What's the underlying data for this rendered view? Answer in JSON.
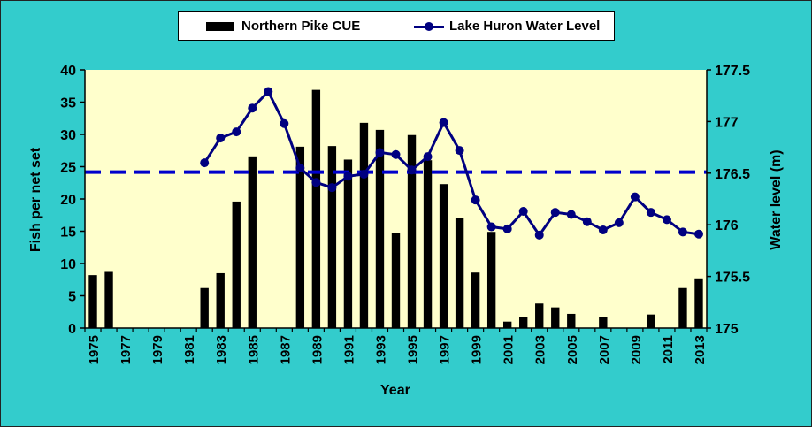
{
  "chart_data": {
    "type": "bar",
    "x": [
      1975,
      1976,
      1977,
      1978,
      1979,
      1980,
      1981,
      1982,
      1983,
      1984,
      1985,
      1986,
      1987,
      1988,
      1989,
      1990,
      1991,
      1992,
      1993,
      1994,
      1995,
      1996,
      1997,
      1998,
      1999,
      2000,
      2001,
      2002,
      2003,
      2004,
      2005,
      2006,
      2007,
      2008,
      2009,
      2010,
      2011,
      2012,
      2013
    ],
    "x_tick_labels": [
      "1975",
      "1977",
      "1979",
      "1981",
      "1983",
      "1985",
      "1987",
      "1989",
      "1991",
      "1993",
      "1995",
      "1997",
      "1999",
      "2001",
      "2003",
      "2005",
      "2007",
      "2009",
      "2011",
      "2013"
    ],
    "series": [
      {
        "name": "Northern Pike CUE",
        "type": "bar",
        "axis": "left",
        "color": "#000000",
        "values": [
          8.2,
          8.7,
          null,
          null,
          null,
          null,
          null,
          6.2,
          8.5,
          19.6,
          26.6,
          null,
          null,
          28.1,
          36.9,
          28.2,
          26.1,
          31.8,
          30.7,
          14.7,
          29.9,
          26.0,
          22.3,
          17.0,
          8.6,
          14.9,
          1.0,
          1.7,
          3.8,
          3.2,
          2.2,
          null,
          1.7,
          null,
          null,
          2.1,
          null,
          6.2,
          7.7
        ]
      },
      {
        "name": "Lake Huron Water Level",
        "type": "line",
        "axis": "right",
        "color": "#000080",
        "values": [
          null,
          null,
          null,
          null,
          null,
          null,
          null,
          176.6,
          176.84,
          176.9,
          177.13,
          177.29,
          176.98,
          176.55,
          176.41,
          176.36,
          176.47,
          176.49,
          176.7,
          176.68,
          176.53,
          176.66,
          176.99,
          176.72,
          176.24,
          175.98,
          175.96,
          176.13,
          175.9,
          176.12,
          176.1,
          176.03,
          175.95,
          176.02,
          176.27,
          176.12,
          176.05,
          175.93,
          175.91
        ]
      }
    ],
    "reference_line": {
      "axis": "right",
      "value": 176.51,
      "style": "dashed",
      "color": "#0000cc"
    },
    "xlabel": "Year",
    "ylabel": "Fish per net set",
    "y2label": "Water level (m)",
    "ylim": [
      0,
      40
    ],
    "y2lim": [
      175,
      177.5
    ],
    "yticks": [
      "0",
      "5",
      "10",
      "15",
      "20",
      "25",
      "30",
      "35",
      "40"
    ],
    "y2ticks": [
      "175",
      "175.5",
      "176",
      "176.5",
      "177",
      "177.5"
    ],
    "grid": false,
    "legend_position": "top",
    "colors": {
      "background": "#33cccc",
      "plot_area": "#ffffcc",
      "bars": "#000000",
      "line": "#000080",
      "reference": "#0000cc"
    }
  }
}
